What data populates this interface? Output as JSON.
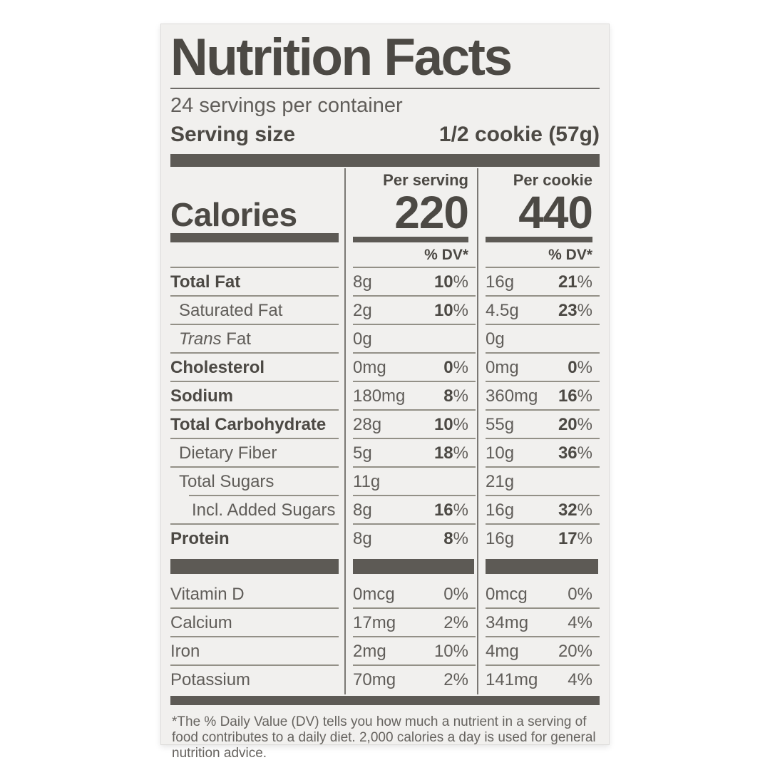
{
  "label": {
    "title": "Nutrition Facts",
    "servings_per_container": "24 servings per container",
    "serving_size_label": "Serving size",
    "serving_size_value": "1/2 cookie (57g)",
    "calories": {
      "word": "Calories",
      "col1_header": "Per serving",
      "col1_value": "220",
      "col2_header": "Per cookie",
      "col2_value": "440",
      "dv_header": "% DV*"
    },
    "main_rows": [
      {
        "name": "Total Fat",
        "a1": "8g",
        "d1": "10",
        "s1": "%",
        "a2": "16g",
        "d2": "21",
        "s2": "%"
      },
      {
        "name": "Saturated Fat",
        "a1": "2g",
        "d1": "10",
        "s1": "%",
        "a2": "4.5g",
        "d2": "23",
        "s2": "%"
      },
      {
        "name_italic": "Trans",
        "name": " Fat",
        "a1": "0g",
        "d1": "",
        "s1": "",
        "a2": "0g",
        "d2": "",
        "s2": ""
      },
      {
        "name": "Cholesterol",
        "a1": "0mg",
        "d1": "0",
        "s1": "%",
        "a2": "0mg",
        "d2": "0",
        "s2": "%"
      },
      {
        "name": "Sodium",
        "a1": "180mg",
        "d1": "8",
        "s1": "%",
        "a2": "360mg",
        "d2": "16",
        "s2": "%"
      },
      {
        "name": "Total Carbohydrate",
        "a1": "28g",
        "d1": "10",
        "s1": "%",
        "a2": "55g",
        "d2": "20",
        "s2": "%"
      },
      {
        "name": "Dietary Fiber",
        "a1": "5g",
        "d1": "18",
        "s1": "%",
        "a2": "10g",
        "d2": "36",
        "s2": "%"
      },
      {
        "name": "Total Sugars",
        "a1": "11g",
        "d1": "",
        "s1": "",
        "a2": "21g",
        "d2": "",
        "s2": ""
      },
      {
        "name": "Incl. Added Sugars",
        "a1": "8g",
        "d1": "16",
        "s1": "%",
        "a2": "16g",
        "d2": "32",
        "s2": "%"
      },
      {
        "name": "Protein",
        "a1": "8g",
        "d1": "8",
        "s1": "%",
        "a2": "16g",
        "d2": "17",
        "s2": "%"
      }
    ],
    "micro_rows": [
      {
        "name": "Vitamin D",
        "a1": "0mcg",
        "d1": "0",
        "s1": "%",
        "a2": "0mcg",
        "d2": "0",
        "s2": "%"
      },
      {
        "name": "Calcium",
        "a1": "17mg",
        "d1": "2",
        "s1": "%",
        "a2": "34mg",
        "d2": "4",
        "s2": "%"
      },
      {
        "name": "Iron",
        "a1": "2mg",
        "d1": "10",
        "s1": "%",
        "a2": "4mg",
        "d2": "20",
        "s2": "%"
      },
      {
        "name": "Potassium",
        "a1": "70mg",
        "d1": "2",
        "s1": "%",
        "a2": "141mg",
        "d2": "4",
        "s2": "%"
      }
    ],
    "footnote": "*The % Daily Value (DV) tells you how much a nutrient in a serving of food contributes to a daily diet. 2,000 calories a day is used for general nutrition advice."
  }
}
